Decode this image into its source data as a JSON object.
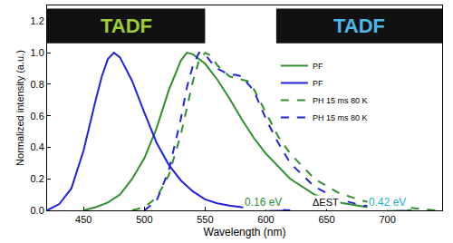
{
  "chart_data": {
    "type": "line",
    "x_title": "Wavelength (nm)",
    "y_title": "Normalized intensity (a.u.)",
    "xlim": [
      420,
      745
    ],
    "ylim": [
      0,
      1.3
    ],
    "xticks": [
      450,
      500,
      550,
      600,
      650,
      700
    ],
    "yticks": [
      {
        "value": 0,
        "label": "0.0"
      },
      {
        "value": 0.2,
        "label": "0.2"
      },
      {
        "value": 0.4,
        "label": "0.4"
      },
      {
        "value": 0.6,
        "label": "0.6"
      },
      {
        "value": 0.8,
        "label": "0.8"
      },
      {
        "value": 1,
        "label": "1.0"
      },
      {
        "value": 1.2,
        "label": "1.2"
      }
    ],
    "grid": false,
    "legend": "top right",
    "series": [
      {
        "name": "PF",
        "color": "#2f8f2f",
        "line_style": "solid",
        "x": [
          450,
          460,
          470,
          480,
          490,
          500,
          510,
          520,
          530,
          535,
          540,
          550,
          560,
          570,
          580,
          590,
          600,
          620,
          640,
          660,
          680,
          700,
          720
        ],
        "values": [
          0.0,
          0.02,
          0.05,
          0.1,
          0.2,
          0.33,
          0.52,
          0.76,
          0.95,
          1.0,
          0.99,
          0.93,
          0.83,
          0.71,
          0.58,
          0.46,
          0.36,
          0.2,
          0.1,
          0.05,
          0.025,
          0.01,
          0.0
        ]
      },
      {
        "name": "PF",
        "color": "#2222dd",
        "line_style": "solid",
        "x": [
          420,
          430,
          440,
          450,
          460,
          465,
          470,
          475,
          480,
          490,
          500,
          510,
          520,
          530,
          540,
          550,
          560,
          570,
          580,
          600,
          620
        ],
        "values": [
          0.0,
          0.04,
          0.14,
          0.38,
          0.7,
          0.85,
          0.96,
          1.0,
          0.97,
          0.82,
          0.62,
          0.43,
          0.29,
          0.19,
          0.12,
          0.07,
          0.045,
          0.03,
          0.02,
          0.01,
          0.0
        ]
      },
      {
        "name": "PH 15 ms 80 K",
        "color": "#2f8f2f",
        "line_style": "dash",
        "x": [
          490,
          500,
          510,
          520,
          530,
          540,
          545,
          550,
          555,
          560,
          570,
          580,
          585,
          590,
          600,
          610,
          620,
          640,
          660,
          680,
          700,
          720,
          740
        ],
        "values": [
          0.0,
          0.02,
          0.08,
          0.22,
          0.48,
          0.82,
          0.95,
          1.0,
          0.98,
          0.92,
          0.85,
          0.83,
          0.82,
          0.77,
          0.62,
          0.47,
          0.36,
          0.2,
          0.11,
          0.06,
          0.03,
          0.015,
          0.0
        ]
      },
      {
        "name": "PH 15 ms 80 K",
        "color": "#2222dd",
        "line_style": "dash",
        "x": [
          500,
          510,
          520,
          530,
          535,
          540,
          545,
          550,
          555,
          560,
          570,
          575,
          580,
          590,
          600,
          610,
          620,
          640,
          660,
          680,
          700,
          720
        ],
        "values": [
          0.0,
          0.06,
          0.25,
          0.58,
          0.78,
          0.92,
          1.0,
          0.99,
          0.94,
          0.9,
          0.86,
          0.86,
          0.85,
          0.76,
          0.58,
          0.43,
          0.3,
          0.15,
          0.07,
          0.03,
          0.015,
          0.0
        ]
      }
    ],
    "annotations": [
      {
        "text": "TADF",
        "color": "#9ccc3a"
      },
      {
        "text": "TADF",
        "color": "#4bb8e8"
      },
      {
        "text": "0.16 eV",
        "color": "#2f8f2f"
      },
      {
        "text": "ΔEST",
        "color": "#000000"
      },
      {
        "text": "0.42 eV",
        "color": "#17b3c8"
      }
    ]
  }
}
